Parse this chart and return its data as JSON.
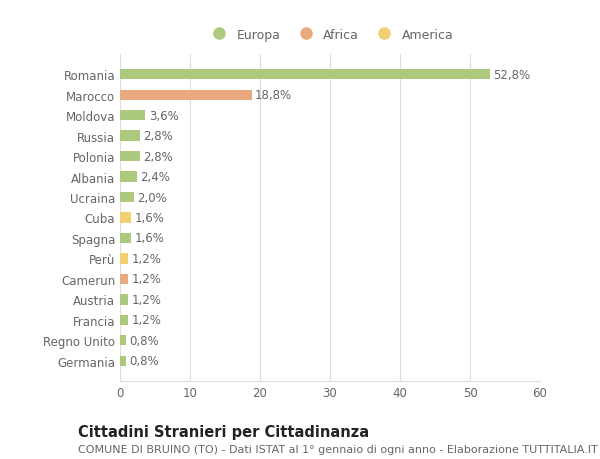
{
  "categories": [
    "Romania",
    "Marocco",
    "Moldova",
    "Russia",
    "Polonia",
    "Albania",
    "Ucraina",
    "Cuba",
    "Spagna",
    "Perù",
    "Camerun",
    "Austria",
    "Francia",
    "Regno Unito",
    "Germania"
  ],
  "values": [
    52.8,
    18.8,
    3.6,
    2.8,
    2.8,
    2.4,
    2.0,
    1.6,
    1.6,
    1.2,
    1.2,
    1.2,
    1.2,
    0.8,
    0.8
  ],
  "labels": [
    "52,8%",
    "18,8%",
    "3,6%",
    "2,8%",
    "2,8%",
    "2,4%",
    "2,0%",
    "1,6%",
    "1,6%",
    "1,2%",
    "1,2%",
    "1,2%",
    "1,2%",
    "0,8%",
    "0,8%"
  ],
  "colors": [
    "#adc97e",
    "#e8a97e",
    "#adc97e",
    "#adc97e",
    "#adc97e",
    "#adc97e",
    "#adc97e",
    "#f0d070",
    "#adc97e",
    "#f0d070",
    "#e8a97e",
    "#adc97e",
    "#adc97e",
    "#adc97e",
    "#adc97e"
  ],
  "legend": [
    {
      "label": "Europa",
      "color": "#adc97e"
    },
    {
      "label": "Africa",
      "color": "#e8a97e"
    },
    {
      "label": "America",
      "color": "#f0d070"
    }
  ],
  "xlim": [
    0,
    60
  ],
  "xticks": [
    0,
    10,
    20,
    30,
    40,
    50,
    60
  ],
  "title": "Cittadini Stranieri per Cittadinanza",
  "subtitle": "COMUNE DI BRUINO (TO) - Dati ISTAT al 1° gennaio di ogni anno - Elaborazione TUTTITALIA.IT",
  "background_color": "#ffffff",
  "grid_color": "#dddddd",
  "bar_height": 0.5,
  "label_fontsize": 8.5,
  "title_fontsize": 10.5,
  "subtitle_fontsize": 8.0,
  "tick_fontsize": 8.5
}
